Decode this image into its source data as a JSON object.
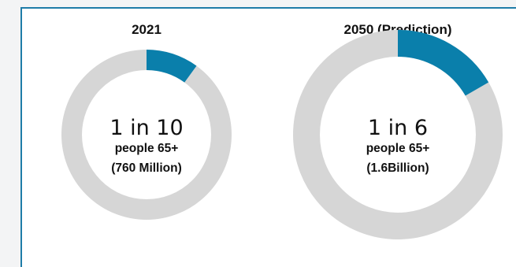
{
  "chart_data": [
    {
      "type": "pie",
      "title": "2021",
      "share": 0.1,
      "ratio_text": "1 in 10",
      "subtitle": "people 65+",
      "detail": "(760 Million)"
    },
    {
      "type": "pie",
      "title": "2050 (Prediction)",
      "share": 0.1667,
      "ratio_text": "1 in 6",
      "subtitle": "people 65+",
      "detail": "(1.6Billion)"
    }
  ],
  "colors": {
    "highlight": "#0a7fab",
    "remainder": "#d6d6d6",
    "frame": "#1e7ca8"
  }
}
